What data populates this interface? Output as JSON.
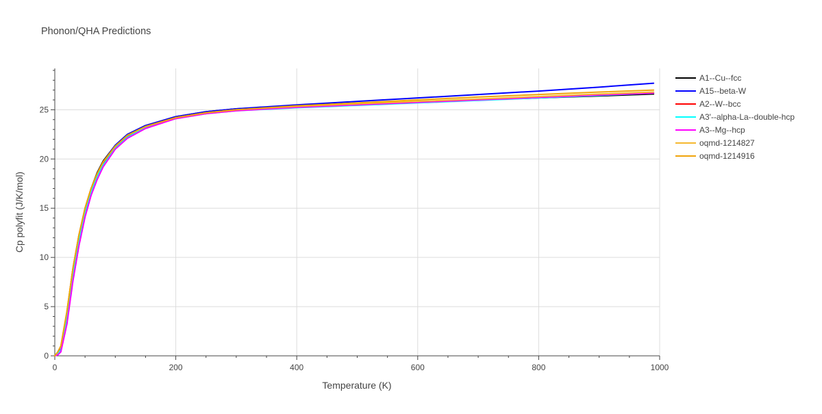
{
  "chart_data": {
    "type": "line",
    "title": "Phonon/QHA Predictions",
    "xlabel": "Temperature (K)",
    "ylabel": "Cp polyfit (J/K/mol)",
    "xlim": [
      0,
      1000
    ],
    "ylim": [
      0,
      29.2
    ],
    "xticks": [
      0,
      200,
      400,
      600,
      800,
      1000
    ],
    "yticks": [
      0,
      5,
      10,
      15,
      20,
      25
    ],
    "grid": true,
    "legend_position": "right",
    "series": [
      {
        "name": "A1--Cu--fcc",
        "color": "#000000",
        "x": [
          0,
          5,
          10,
          20,
          30,
          40,
          50,
          60,
          70,
          80,
          100,
          120,
          150,
          200,
          250,
          300,
          400,
          500,
          600,
          700,
          800,
          900,
          990
        ],
        "y": [
          0,
          0.3,
          0.9,
          4.4,
          8.9,
          12.3,
          15.0,
          17.0,
          18.6,
          19.8,
          21.4,
          22.5,
          23.4,
          24.3,
          24.8,
          25.1,
          25.4,
          25.6,
          25.8,
          26.0,
          26.2,
          26.4,
          26.6
        ]
      },
      {
        "name": "A15--beta-W",
        "color": "#0000ff",
        "x": [
          0,
          5,
          10,
          20,
          30,
          40,
          50,
          60,
          70,
          80,
          100,
          120,
          150,
          200,
          250,
          300,
          400,
          500,
          600,
          700,
          800,
          900,
          990
        ],
        "y": [
          0,
          0.3,
          0.8,
          4.2,
          8.7,
          12.2,
          14.9,
          16.9,
          18.5,
          19.7,
          21.4,
          22.5,
          23.4,
          24.3,
          24.8,
          25.1,
          25.5,
          25.85,
          26.2,
          26.55,
          26.9,
          27.3,
          27.7
        ]
      },
      {
        "name": "A2--W--bcc",
        "color": "#ff0000",
        "x": [
          0,
          5,
          10,
          20,
          30,
          40,
          50,
          60,
          70,
          80,
          100,
          120,
          150,
          200,
          250,
          300,
          400,
          500,
          600,
          700,
          800,
          900,
          990
        ],
        "y": [
          0,
          0.2,
          0.6,
          3.9,
          8.4,
          11.9,
          14.6,
          16.7,
          18.3,
          19.5,
          21.2,
          22.3,
          23.3,
          24.2,
          24.7,
          25.0,
          25.3,
          25.55,
          25.8,
          26.0,
          26.25,
          26.5,
          26.7
        ]
      },
      {
        "name": "A3'--alpha-La--double-hcp",
        "color": "#00ffff",
        "x": [
          0,
          5,
          10,
          20,
          30,
          40,
          50,
          60,
          70,
          80,
          100,
          120,
          150,
          200,
          250,
          300,
          400,
          500,
          600,
          700,
          800,
          900,
          990
        ],
        "y": [
          0,
          0.2,
          0.6,
          3.8,
          8.3,
          11.8,
          14.5,
          16.6,
          18.2,
          19.4,
          21.1,
          22.2,
          23.2,
          24.1,
          24.6,
          24.9,
          25.2,
          25.45,
          25.7,
          25.95,
          26.2,
          26.45,
          26.7
        ]
      },
      {
        "name": "A3--Mg--hcp",
        "color": "#ff00ff",
        "x": [
          0,
          5,
          10,
          20,
          30,
          40,
          50,
          60,
          70,
          80,
          100,
          120,
          150,
          200,
          250,
          300,
          400,
          500,
          600,
          700,
          800,
          900,
          990
        ],
        "y": [
          0,
          0.1,
          0.4,
          3.2,
          7.6,
          11.2,
          14.1,
          16.3,
          17.9,
          19.2,
          21.0,
          22.1,
          23.1,
          24.1,
          24.6,
          24.9,
          25.25,
          25.5,
          25.75,
          26.0,
          26.25,
          26.5,
          26.7
        ]
      },
      {
        "name": "oqmd-1214827",
        "color": "#f5b82e",
        "x": [
          0,
          5,
          10,
          20,
          30,
          40,
          50,
          60,
          70,
          80,
          100,
          120,
          150,
          200,
          250,
          300,
          400,
          500,
          600,
          700,
          800,
          900,
          990
        ],
        "y": [
          0,
          0.4,
          1.0,
          4.5,
          8.9,
          12.3,
          15.0,
          17.0,
          18.5,
          19.7,
          21.3,
          22.4,
          23.3,
          24.2,
          24.7,
          25.0,
          25.35,
          25.6,
          25.85,
          26.1,
          26.35,
          26.6,
          26.8
        ]
      },
      {
        "name": "oqmd-1214916",
        "color": "#f0a30a",
        "x": [
          0,
          5,
          10,
          20,
          30,
          40,
          50,
          60,
          70,
          80,
          100,
          120,
          150,
          200,
          250,
          300,
          400,
          500,
          600,
          700,
          800,
          900,
          990
        ],
        "y": [
          0,
          0.4,
          1.0,
          4.5,
          8.9,
          12.3,
          15.0,
          17.0,
          18.5,
          19.7,
          21.3,
          22.4,
          23.3,
          24.2,
          24.7,
          25.0,
          25.4,
          25.7,
          26.0,
          26.3,
          26.55,
          26.8,
          27.0
        ]
      }
    ]
  }
}
